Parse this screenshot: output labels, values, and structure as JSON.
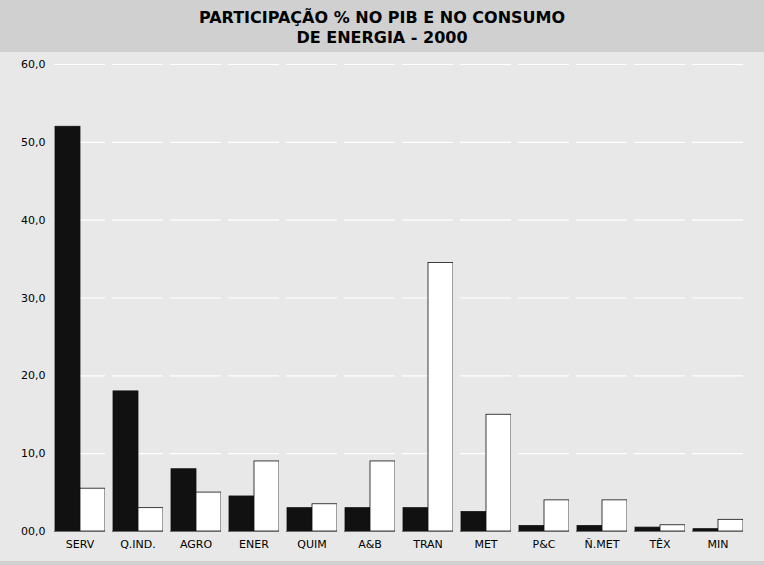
{
  "chart_data": {
    "type": "bar",
    "title": "PARTICIPAÇÃO % NO PIB E NO CONSUMO\nDE ENERGIA - 2000",
    "categories": [
      "SERV",
      "Q.IND.",
      "AGRO",
      "ENER",
      "QUIM",
      "A&B",
      "TRAN",
      "MET",
      "P&C",
      "Ñ.MET",
      "TÊX",
      "MIN"
    ],
    "series": [
      {
        "color": "#111111",
        "values": [
          52.0,
          18.0,
          8.0,
          4.5,
          3.0,
          3.0,
          3.0,
          2.5,
          0.7,
          0.7,
          0.5,
          0.3
        ]
      },
      {
        "color": "#ffffff",
        "values": [
          5.5,
          3.0,
          5.0,
          9.0,
          3.5,
          9.0,
          34.5,
          15.0,
          4.0,
          4.0,
          0.8,
          1.5
        ]
      }
    ],
    "ylim": [
      0,
      60
    ],
    "yticks": [
      {
        "value": 0,
        "label": "00,0"
      },
      {
        "value": 10,
        "label": "10,0"
      },
      {
        "value": 20,
        "label": "20,0"
      },
      {
        "value": 30,
        "label": "30,0"
      },
      {
        "value": 40,
        "label": "40,0"
      },
      {
        "value": 50,
        "label": "50,0"
      },
      {
        "value": 60,
        "label": "60,0"
      }
    ],
    "grid": true
  }
}
